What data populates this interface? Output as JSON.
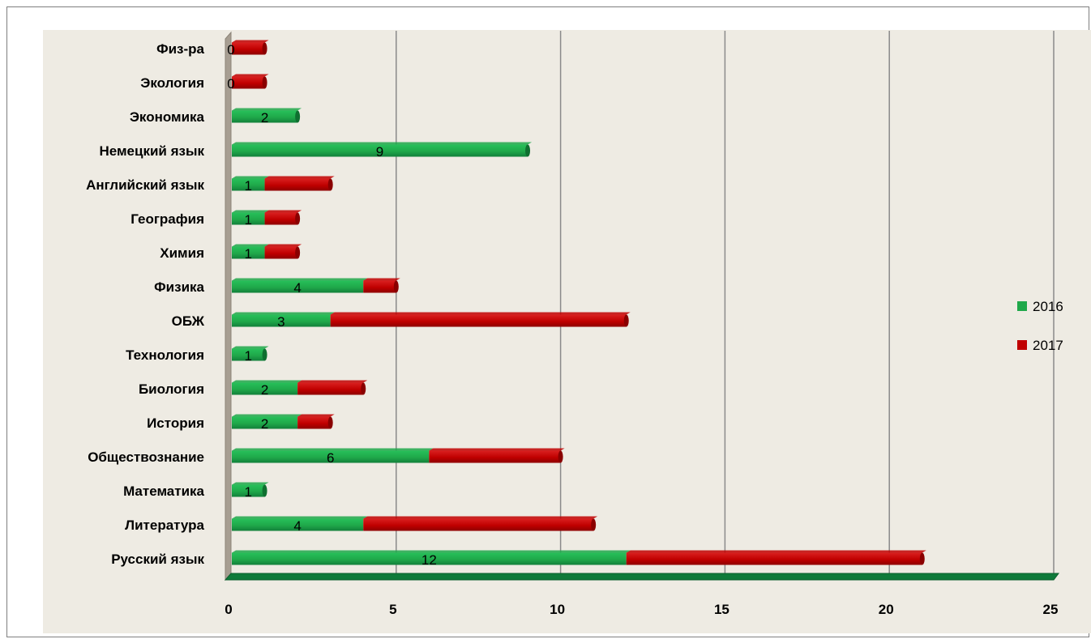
{
  "chart_data": {
    "type": "bar",
    "orientation": "horizontal",
    "stacked": true,
    "categories": [
      "Русский язык",
      "Литература",
      "Математика",
      "Обществознание",
      "История",
      "Биология",
      "Технология",
      "ОБЖ",
      "Физика",
      "Химия",
      "География",
      "Английский язык",
      "Немецкий язык",
      "Экономика",
      "Экология",
      "Физ-ра"
    ],
    "series": [
      {
        "name": "2016",
        "color": "#1fa84a",
        "values": [
          12,
          4,
          1,
          6,
          2,
          2,
          1,
          3,
          4,
          1,
          1,
          1,
          9,
          2,
          0,
          0
        ]
      },
      {
        "name": "2017",
        "color": "#c00000",
        "values": [
          9,
          7,
          0,
          4,
          1,
          2,
          0,
          9,
          1,
          1,
          1,
          2,
          0,
          0,
          1,
          1
        ]
      }
    ],
    "data_labels": [
      "12",
      "4",
      "1",
      "6",
      "2",
      "2",
      "1",
      "3",
      "4",
      "1",
      "1",
      "1",
      "9",
      "2",
      "0",
      "0"
    ],
    "xlim": [
      0,
      25
    ],
    "x_ticks": [
      "0",
      "5",
      "10",
      "15",
      "20",
      "25"
    ],
    "grid": "vertical",
    "legend_position": "right"
  }
}
